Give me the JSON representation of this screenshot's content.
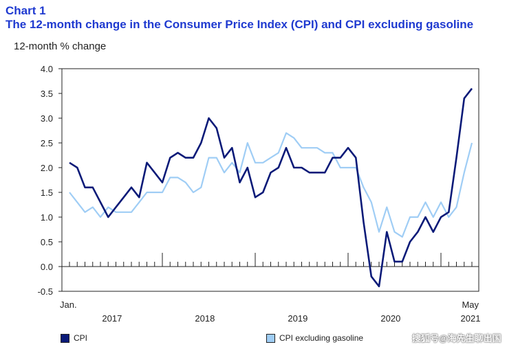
{
  "header": {
    "label": "Chart 1",
    "title": "The 12-month change in the Consumer Price Index (CPI) and CPI excluding gasoline"
  },
  "watermark": "搜狐号@海先生聊出国",
  "chart_data": {
    "type": "line",
    "ylabel": "12-month % change",
    "ylim": [
      -0.5,
      4.0
    ],
    "yticks": [
      "4.0",
      "3.5",
      "3.0",
      "2.5",
      "2.0",
      "1.5",
      "1.0",
      "0.5",
      "0.0",
      "-0.5"
    ],
    "x_start_label": "Jan.",
    "x_end_label": "May",
    "year_labels": [
      "2017",
      "2018",
      "2019",
      "2020",
      "2021"
    ],
    "grid": false,
    "legend_position": "bottom",
    "series": [
      {
        "name": "CPI",
        "color": "#0a1a78",
        "values": [
          2.1,
          2.0,
          1.6,
          1.6,
          1.3,
          1.0,
          1.2,
          1.4,
          1.6,
          1.4,
          2.1,
          1.9,
          1.7,
          2.2,
          2.3,
          2.2,
          2.2,
          2.5,
          3.0,
          2.8,
          2.2,
          2.4,
          1.7,
          2.0,
          1.4,
          1.5,
          1.9,
          2.0,
          2.4,
          2.0,
          2.0,
          1.9,
          1.9,
          1.9,
          2.2,
          2.2,
          2.4,
          2.2,
          0.9,
          -0.2,
          -0.4,
          0.7,
          0.1,
          0.1,
          0.5,
          0.7,
          1.0,
          0.7,
          1.0,
          1.1,
          2.2,
          3.4,
          3.6
        ]
      },
      {
        "name": "CPI excluding gasoline",
        "color": "#9fcdf5",
        "values": [
          1.5,
          1.3,
          1.1,
          1.2,
          1.0,
          1.2,
          1.1,
          1.1,
          1.1,
          1.3,
          1.5,
          1.5,
          1.5,
          1.8,
          1.8,
          1.7,
          1.5,
          1.6,
          2.2,
          2.2,
          1.9,
          2.1,
          1.9,
          2.5,
          2.1,
          2.1,
          2.2,
          2.3,
          2.7,
          2.6,
          2.4,
          2.4,
          2.4,
          2.3,
          2.3,
          2.0,
          2.0,
          2.0,
          1.6,
          1.3,
          0.7,
          1.2,
          0.7,
          0.6,
          1.0,
          1.0,
          1.3,
          1.0,
          1.3,
          1.0,
          1.2,
          1.9,
          2.5
        ]
      }
    ]
  }
}
